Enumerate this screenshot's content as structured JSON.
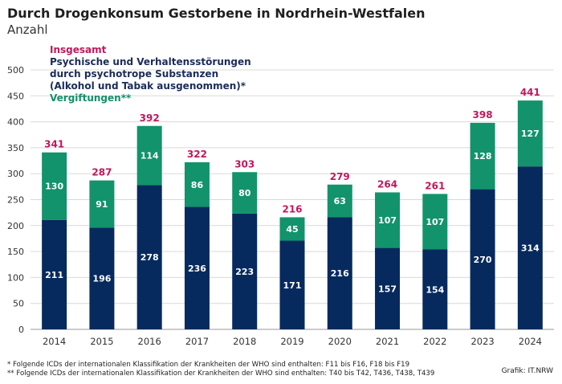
{
  "header": {
    "title": "Durch Drogenkonsum Gestorbene in Nordrhein-Westfalen",
    "subtitle": "Anzahl"
  },
  "legend": {
    "total": "Insgesamt",
    "psy_line1": "Psychische und Verhaltensstörungen",
    "psy_line2": "durch psychotrope Substanzen",
    "psy_line3": "(Alkohol und Tabak ausgenommen)*",
    "vergiftungen": "Vergiftungen**"
  },
  "footnotes": {
    "note1": "* Folgende ICDs der internationalen Klassifikation der Krankheiten der WHO sind enthalten: F11 bis F16, F18 bis F19",
    "note2": "** Folgende ICDs der internationalen Klassifikation der Krankheiten der WHO sind enthalten: T40 bis T42, T436, T438, T439",
    "source": "Grafik: IT.NRW"
  },
  "colors": {
    "psy": "#062a5e",
    "vergiftungen": "#12936b",
    "total": "#c2185b",
    "grid": "#d9d9d9"
  },
  "chart_data": {
    "type": "bar",
    "stacked": true,
    "categories": [
      "2014",
      "2015",
      "2016",
      "2017",
      "2018",
      "2019",
      "2020",
      "2021",
      "2022",
      "2023",
      "2024"
    ],
    "series": [
      {
        "name": "Psychische und Verhaltensstörungen durch psychotrope Substanzen (Alkohol und Tabak ausgenommen)*",
        "values": [
          211,
          196,
          278,
          236,
          223,
          171,
          216,
          157,
          154,
          270,
          314
        ]
      },
      {
        "name": "Vergiftungen**",
        "values": [
          130,
          91,
          114,
          86,
          80,
          45,
          63,
          107,
          107,
          128,
          127
        ]
      }
    ],
    "totals": {
      "name": "Insgesamt",
      "values": [
        341,
        287,
        392,
        322,
        303,
        216,
        279,
        264,
        261,
        398,
        441
      ]
    },
    "ylim": [
      0,
      500
    ],
    "yticks": [
      0,
      50,
      100,
      150,
      200,
      250,
      300,
      350,
      400,
      450,
      500
    ],
    "grid": true,
    "legend_position": "top-left"
  }
}
